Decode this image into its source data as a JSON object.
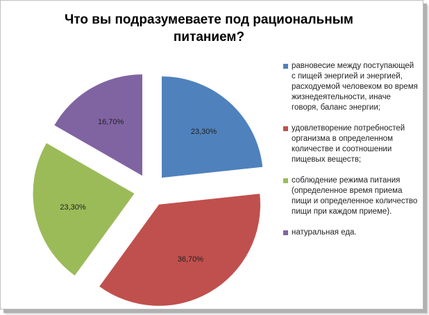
{
  "chart_data": {
    "type": "pie",
    "title": "Что вы подразумеваете под рациональным питанием?",
    "title_lines": [
      "Что вы подразумеваете под рациональным",
      "питанием?"
    ],
    "slices": [
      {
        "label": "равновесие между поступающей с пищей энергией и энергией, расходуемой  человеком во время жизнедеятельности, иначе говоря, баланс энергии;",
        "value": 23.3,
        "value_label": "23,30%",
        "color": "#4f81bd"
      },
      {
        "label": "удовлетворение потребностей организма в определенном количестве и соотношении пищевых веществ;",
        "value": 36.7,
        "value_label": "36,70%",
        "color": "#c0504d"
      },
      {
        "label": "соблюдение режима питания (определенное время приема пищи и определенное количество пищи при каждом приеме).",
        "value": 23.3,
        "value_label": "23,30%",
        "color": "#9bbb59"
      },
      {
        "label": "натуральная еда.",
        "value": 16.7,
        "value_label": "16,70%",
        "color": "#8064a2"
      }
    ],
    "exploded": true,
    "legend_position": "right"
  }
}
